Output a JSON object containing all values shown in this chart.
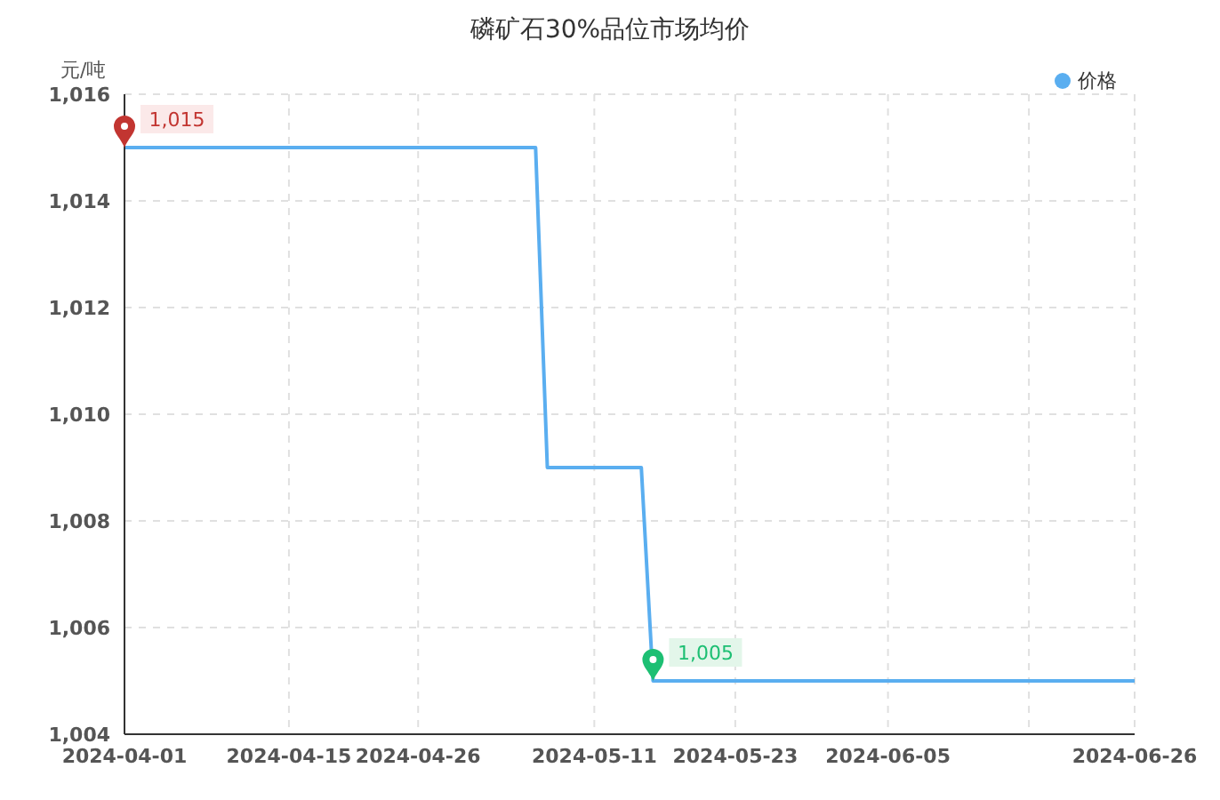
{
  "chart_data": {
    "type": "line",
    "title": "磷矿石30%品位市场均价",
    "ylabel": "元/吨",
    "x": [
      "2024-04-01",
      "2024-05-06",
      "2024-05-07",
      "2024-05-15",
      "2024-05-16",
      "2024-06-26"
    ],
    "series": [
      {
        "name": "价格",
        "color": "#5aaef0",
        "values": [
          1015,
          1015,
          1009,
          1009,
          1005,
          1005
        ]
      }
    ],
    "ylim": [
      1004,
      1016
    ],
    "yticks": [
      {
        "value": 1004,
        "label": "1,004"
      },
      {
        "value": 1006,
        "label": "1,006"
      },
      {
        "value": 1008,
        "label": "1,008"
      },
      {
        "value": 1010,
        "label": "1,010"
      },
      {
        "value": 1012,
        "label": "1,012"
      },
      {
        "value": 1014,
        "label": "1,014"
      },
      {
        "value": 1016,
        "label": "1,016"
      }
    ],
    "xlim": [
      "2024-04-01",
      "2024-06-26"
    ],
    "xticks": [
      {
        "value": "2024-04-01",
        "label": "2024-04-01"
      },
      {
        "value": "2024-04-15",
        "label": "2024-04-15"
      },
      {
        "value": "2024-04-26",
        "label": "2024-04-26"
      },
      {
        "value": "2024-05-11",
        "label": "2024-05-11"
      },
      {
        "value": "2024-05-23",
        "label": "2024-05-23"
      },
      {
        "value": "2024-06-05",
        "label": "2024-06-05"
      },
      {
        "value": "2024-06-17",
        "label": null
      },
      {
        "value": "2024-06-26",
        "label": "2024-06-26"
      }
    ],
    "annotations": [
      {
        "text": "1,015",
        "x": "2024-04-01",
        "y": 1015
      },
      {
        "text": "1,005",
        "x": "2024-05-16",
        "y": 1005
      }
    ],
    "grid": true,
    "legend": "top right",
    "marker": "none",
    "line_style": "solid"
  }
}
